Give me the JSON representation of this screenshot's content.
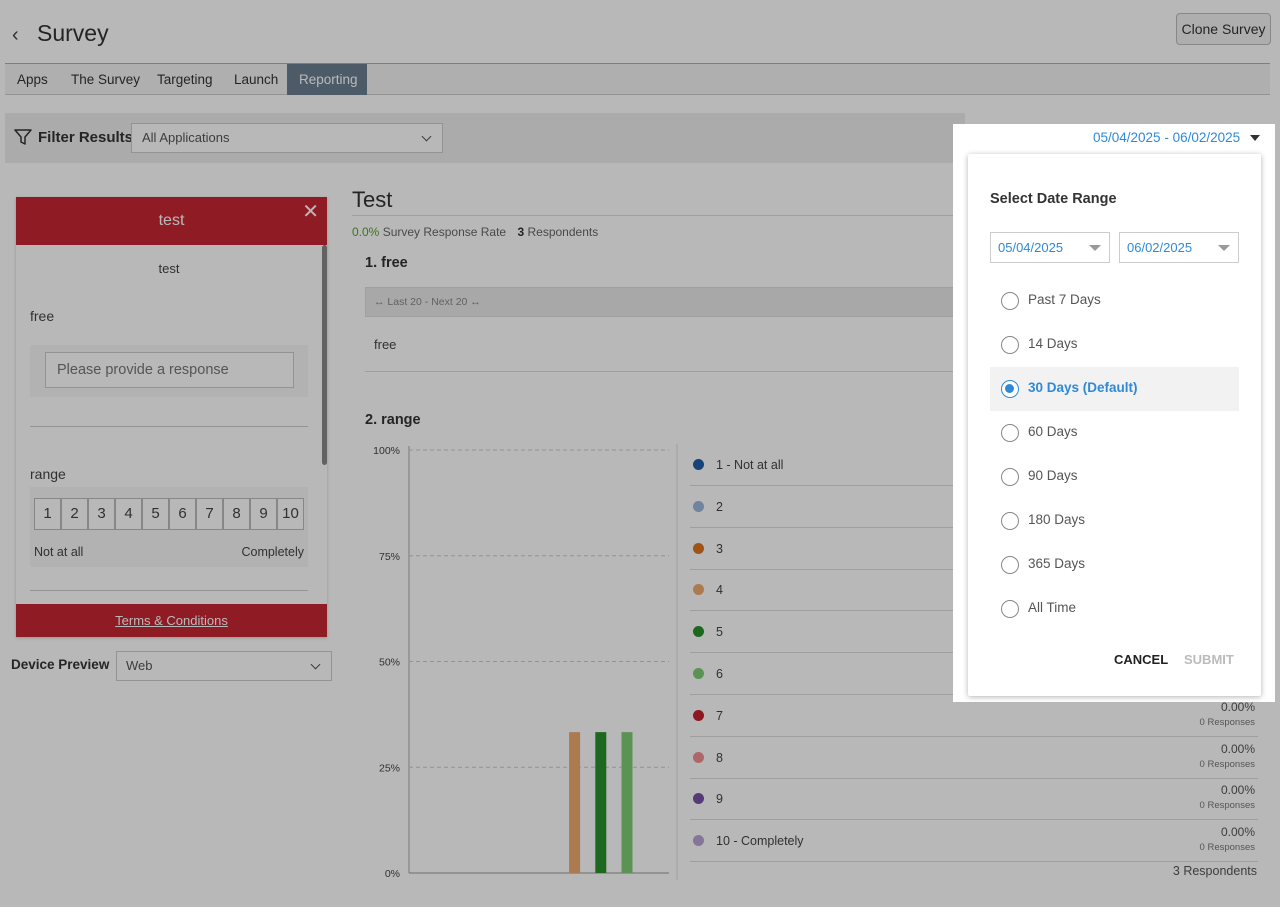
{
  "header": {
    "title": "Survey",
    "clone_label": "Clone Survey"
  },
  "tabs": [
    {
      "label": "Apps"
    },
    {
      "label": "The Survey"
    },
    {
      "label": "Targeting"
    },
    {
      "label": "Launch"
    },
    {
      "label": "Reporting",
      "active": true
    }
  ],
  "filter": {
    "label": "Filter Results",
    "application": "All Applications",
    "date_range": "05/04/2025 - 06/02/2025"
  },
  "preview": {
    "title": "test",
    "subtitle": "test",
    "question1": "free",
    "placeholder": "Please provide a response",
    "question2": "range",
    "scale": [
      "1",
      "2",
      "3",
      "4",
      "5",
      "6",
      "7",
      "8",
      "9",
      "10"
    ],
    "scale_low": "Not at all",
    "scale_high": "Completely",
    "footer": "Terms & Conditions"
  },
  "device": {
    "label": "Device Preview",
    "value": "Web"
  },
  "report": {
    "title": "Test",
    "response_rate": "0.0%",
    "response_rate_label": "Survey Response Rate",
    "respondents_count": "3",
    "respondents_label": "Respondents",
    "q1_title": "1. free",
    "pager": "↔ Last 20 - Next 20 ↔",
    "q1_answer": "free",
    "q2_title": "2. range",
    "total": "3 Respondents"
  },
  "chart_data": {
    "type": "bar",
    "categories": [
      "1 - Not at all",
      "2",
      "3",
      "4",
      "5",
      "6",
      "7",
      "8",
      "9",
      "10 - Completely"
    ],
    "values": [
      0,
      0,
      0,
      33.3,
      33.3,
      33.3,
      0,
      0,
      0,
      0
    ],
    "colors": [
      "#1f5fa8",
      "#9db7dc",
      "#e0731f",
      "#efaa6e",
      "#2a8f2a",
      "#7fcc77",
      "#c2222e",
      "#ef8f91",
      "#7b4fa6",
      "#b9a2d4"
    ],
    "yticks": [
      "100%",
      "75%",
      "50%",
      "25%",
      "0%"
    ],
    "ylim": [
      0,
      100
    ]
  },
  "legend_rows": [
    {
      "label": "1 - Not at all",
      "pct": "",
      "resp": ""
    },
    {
      "label": "2",
      "pct": "",
      "resp": ""
    },
    {
      "label": "3",
      "pct": "",
      "resp": ""
    },
    {
      "label": "4",
      "pct": "",
      "resp": ""
    },
    {
      "label": "5",
      "pct": "",
      "resp": ""
    },
    {
      "label": "6",
      "pct": "",
      "resp": ""
    },
    {
      "label": "7",
      "pct": "0.00%",
      "resp": "0 Responses"
    },
    {
      "label": "8",
      "pct": "0.00%",
      "resp": "0 Responses"
    },
    {
      "label": "9",
      "pct": "0.00%",
      "resp": "0 Responses"
    },
    {
      "label": "10 - Completely",
      "pct": "0.00%",
      "resp": "0 Responses"
    }
  ],
  "date_popup": {
    "title": "Select Date Range",
    "start": "05/04/2025",
    "end": "06/02/2025",
    "options": [
      "Past 7 Days",
      "14 Days",
      "30 Days (Default)",
      "60 Days",
      "90 Days",
      "180 Days",
      "365 Days",
      "All Time"
    ],
    "selected_index": 2,
    "cancel": "CANCEL",
    "submit": "SUBMIT"
  }
}
